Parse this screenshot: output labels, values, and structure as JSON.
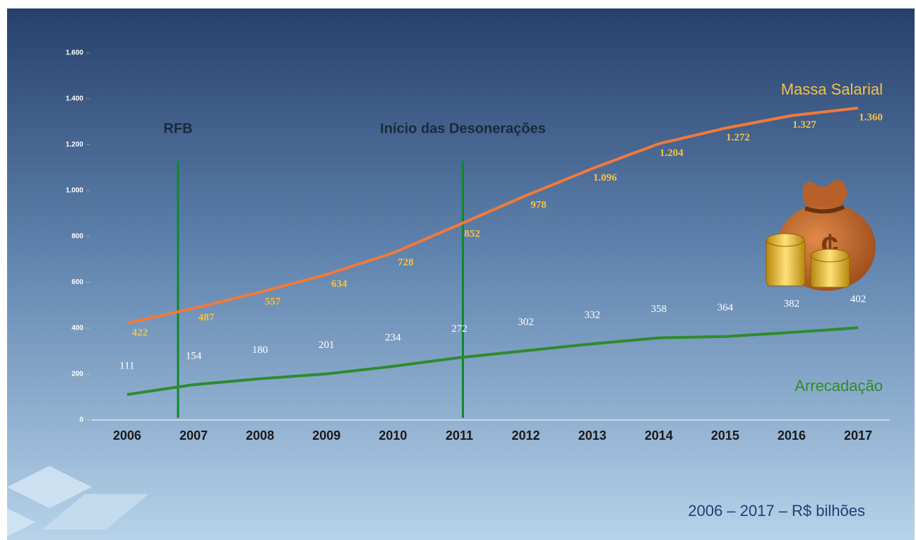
{
  "chart_data": {
    "type": "line",
    "subtitle": "2006 – 2017 – R$ bilhões",
    "categories": [
      "2006",
      "2007",
      "2008",
      "2009",
      "2010",
      "2011",
      "2012",
      "2013",
      "2014",
      "2015",
      "2016",
      "2017"
    ],
    "series": [
      {
        "name": "Massa Salarial",
        "color": "#f07a3c",
        "label_color": "#f4c04a",
        "values": [
          422,
          487,
          557,
          634,
          728,
          852,
          978,
          1096,
          1204,
          1272,
          1327,
          1360
        ],
        "value_labels": [
          "422",
          "487",
          "557",
          "634",
          "728",
          "852",
          "978",
          "1.096",
          "1.204",
          "1.272",
          "1.327",
          "1.360"
        ]
      },
      {
        "name": "Arrecadação",
        "color": "#2e8b2e",
        "label_color": "#ffffff",
        "values": [
          111,
          154,
          180,
          201,
          234,
          272,
          302,
          332,
          358,
          364,
          382,
          402
        ]
      }
    ],
    "ylim": [
      0,
      1600
    ],
    "yticks": [
      0,
      200,
      400,
      600,
      800,
      {
        "value": 1000,
        "label": "1.000"
      },
      {
        "value": 1200,
        "label": "1.200"
      },
      {
        "value": 1400,
        "label": "1.400"
      },
      {
        "value": 1600,
        "label": "1.600"
      }
    ],
    "annotations": [
      {
        "text": "RFB",
        "x": "2007",
        "color": "#0a8a2a"
      },
      {
        "text": "Início das Desonerações",
        "x": "2011",
        "color": "#0a8a2a"
      }
    ]
  }
}
